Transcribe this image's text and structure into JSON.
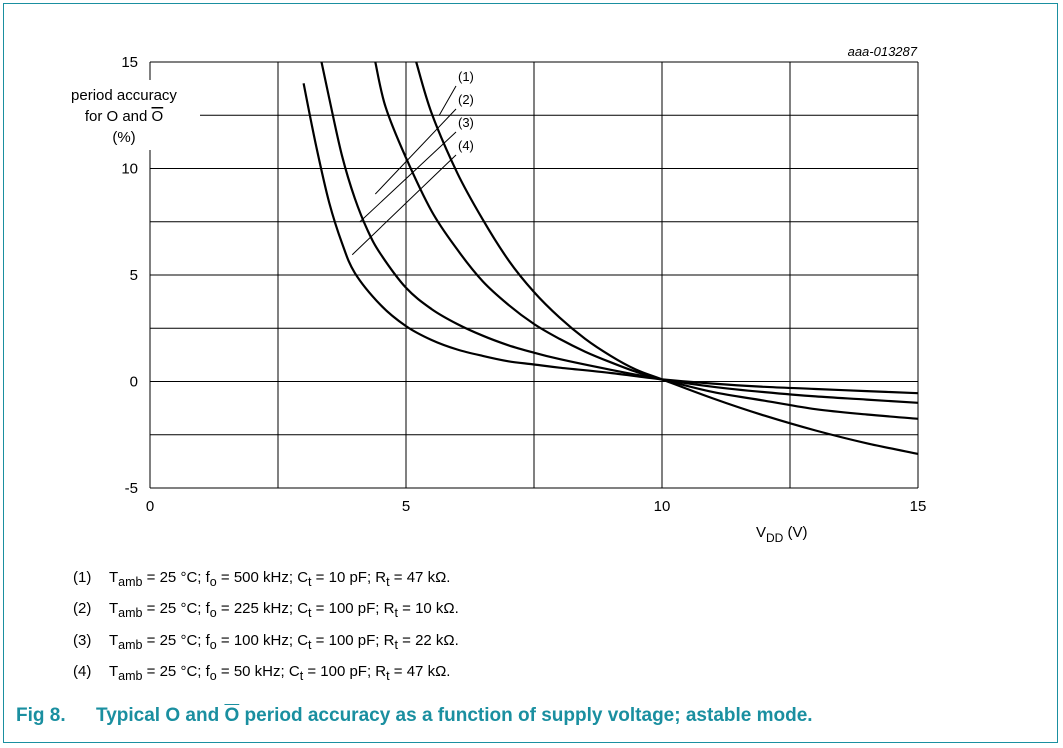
{
  "chart_data": {
    "type": "line",
    "reference_code": "aaa-013287",
    "ylabel_lines": [
      "period accuracy",
      "for O and Ō",
      "(%)"
    ],
    "xlabel": "VDD (V)",
    "xlim": [
      0,
      15
    ],
    "ylim": [
      -5,
      15
    ],
    "xticks": [
      0,
      5,
      10,
      15
    ],
    "yticks": [
      -5,
      0,
      5,
      10,
      15
    ],
    "grid": true,
    "line_color": "#000000",
    "series": [
      {
        "name": "(1)",
        "x": [
          5.2,
          5.5,
          6,
          6.5,
          7,
          7.5,
          8,
          8.5,
          9,
          9.5,
          10,
          11,
          12,
          13,
          14,
          15
        ],
        "y": [
          15,
          12.6,
          9.8,
          7.6,
          5.7,
          4.2,
          3.0,
          2.0,
          1.2,
          0.55,
          0.1,
          -0.8,
          -1.6,
          -2.3,
          -2.9,
          -3.4
        ]
      },
      {
        "name": "(2)",
        "x": [
          4.4,
          4.6,
          5,
          5.5,
          6,
          6.5,
          7,
          7.5,
          8,
          8.5,
          9,
          9.5,
          10,
          11,
          12,
          13,
          14,
          15
        ],
        "y": [
          15,
          12.9,
          10.5,
          8.0,
          6.2,
          4.7,
          3.6,
          2.7,
          2.0,
          1.4,
          0.9,
          0.45,
          0.1,
          -0.5,
          -0.9,
          -1.3,
          -1.55,
          -1.75
        ]
      },
      {
        "name": "(3)",
        "x": [
          3.35,
          3.5,
          3.75,
          4,
          4.25,
          4.5,
          5,
          5.5,
          6,
          6.5,
          7,
          7.5,
          8,
          9,
          10,
          11,
          12,
          13,
          14,
          15
        ],
        "y": [
          15,
          13.3,
          10.6,
          8.6,
          7.1,
          6.0,
          4.4,
          3.4,
          2.7,
          2.15,
          1.7,
          1.35,
          1.05,
          0.55,
          0.1,
          -0.25,
          -0.5,
          -0.7,
          -0.85,
          -1.0
        ]
      },
      {
        "name": "(4)",
        "x": [
          3.0,
          3.25,
          3.5,
          3.75,
          4,
          4.5,
          5,
          5.5,
          6,
          6.5,
          7,
          7.5,
          8,
          9,
          10,
          11,
          12,
          13,
          14,
          15
        ],
        "y": [
          14.0,
          11.0,
          8.4,
          6.5,
          5.1,
          3.6,
          2.6,
          1.95,
          1.5,
          1.2,
          0.95,
          0.8,
          0.65,
          0.4,
          0.1,
          -0.1,
          -0.25,
          -0.35,
          -0.45,
          -0.55
        ]
      }
    ]
  },
  "notes": [
    {
      "num": "(1)",
      "text": "Tamb = 25 °C; fo = 500 kHz; Ct = 10 pF; Rt = 47 kΩ."
    },
    {
      "num": "(2)",
      "text": "Tamb = 25 °C; fo = 225 kHz; Ct = 100 pF; Rt = 10 kΩ."
    },
    {
      "num": "(3)",
      "text": "Tamb = 25 °C; fo = 100 kHz; Ct = 100 pF; Rt = 22 kΩ."
    },
    {
      "num": "(4)",
      "text": "Tamb = 25 °C; fo = 50 kHz; Ct = 100 pF; Rt = 47 kΩ."
    }
  ],
  "caption": {
    "fig": "Fig 8.",
    "text": "Typical O and Ō period accuracy as a function of supply voltage; astable mode."
  }
}
